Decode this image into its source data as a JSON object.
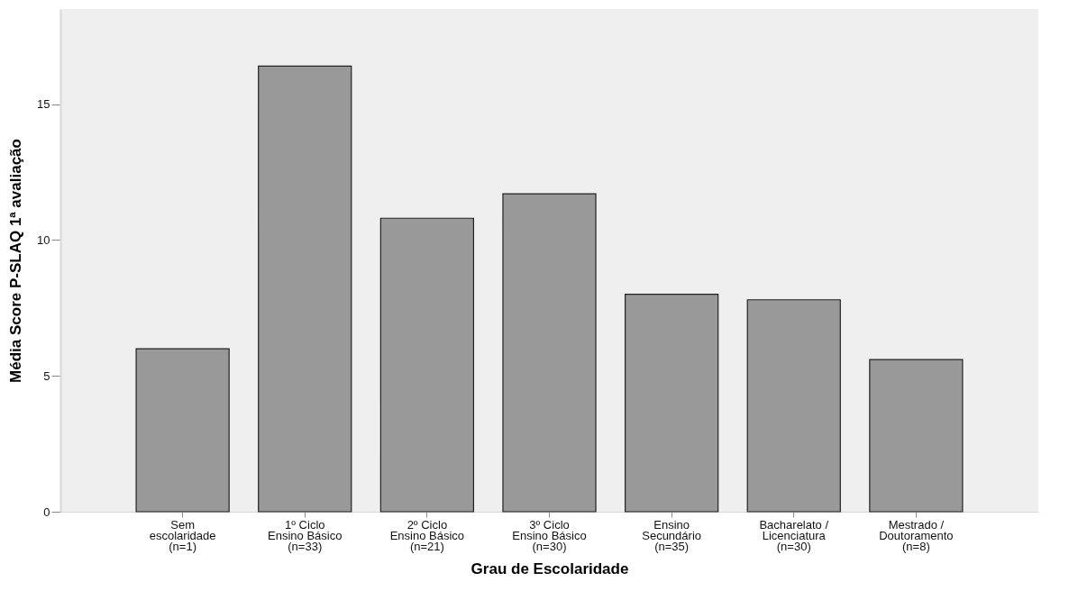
{
  "chart_data": {
    "type": "bar",
    "xlabel": "Grau de Escolaridade",
    "ylabel": "Média Score P-SLAQ 1ª avaliação",
    "categories": [
      "Sem\nescolaridade\n(n=1)",
      "1º Ciclo\nEnsino Básico\n(n=33)",
      "2º Ciclo\nEnsino Básico\n(n=21)",
      "3º Ciclo\nEnsino Básico\n(n=30)",
      "Ensino\nSecundário\n(n=35)",
      "Bacharelato /\nLicenciatura\n(n=30)",
      "Mestrado /\nDoutoramento\n(n=8)"
    ],
    "values": [
      6.0,
      16.4,
      10.8,
      11.7,
      8.0,
      7.8,
      5.6
    ],
    "color": "#999999",
    "ylim": [
      0,
      18.5
    ],
    "yticks": [
      0,
      5,
      10,
      15
    ],
    "grid": false
  }
}
